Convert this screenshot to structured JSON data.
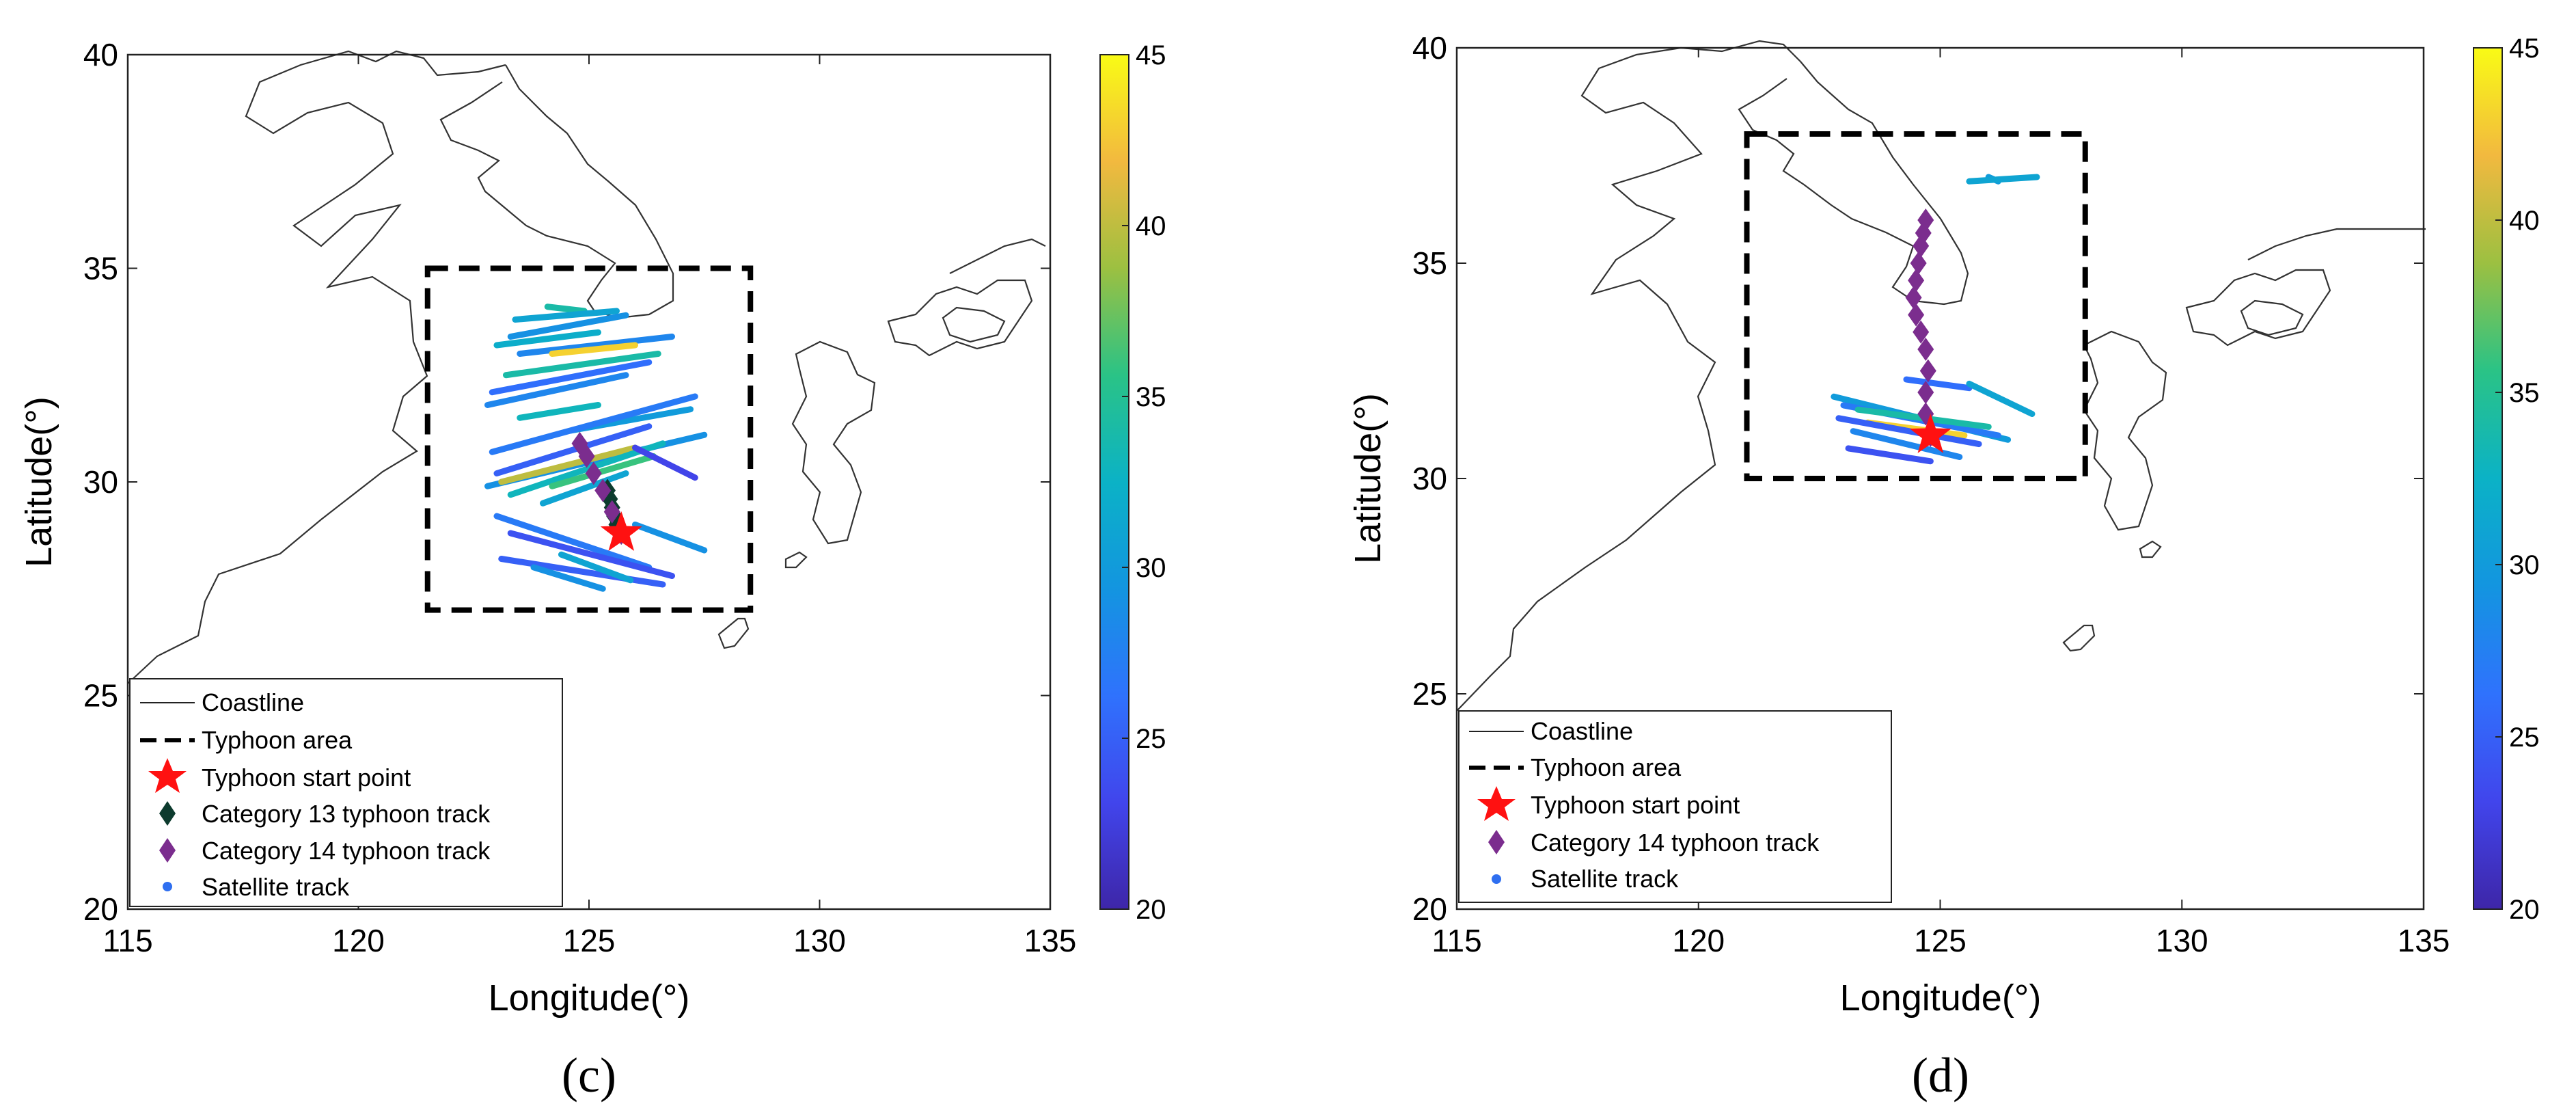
{
  "chart_data": [
    {
      "type": "scatter",
      "caption": "(c)",
      "xlabel": "Longitude(°)",
      "ylabel": "Latitude(°)",
      "xlim": [
        115,
        135
      ],
      "ylim": [
        20,
        40
      ],
      "xticks": [
        "115",
        "120",
        "125",
        "130",
        "135"
      ],
      "yticks": [
        "20",
        "25",
        "30",
        "35",
        "40"
      ],
      "colorbar": {
        "range": [
          20,
          45
        ],
        "ticks": [
          "20",
          "25",
          "30",
          "35",
          "40",
          "45"
        ]
      },
      "legend": {
        "position": "bottom-left",
        "entries": [
          "Coastline",
          "Typhoon area",
          "Typhoon start point",
          "Category 13 typhoon track",
          "Category 14 typhoon track",
          "Satellite track"
        ]
      },
      "typhoon_area": {
        "lon": [
          121.5,
          128.5
        ],
        "lat": [
          27,
          35
        ]
      },
      "start_point": {
        "lon": 125.7,
        "lat": 28.8
      },
      "typhoon_tracks": [
        {
          "name": "Category 13 typhoon track",
          "color": "#0d3b2e",
          "points": [
            [
              125.7,
              28.8
            ],
            [
              125.6,
              29.0
            ],
            [
              125.55,
              29.2
            ],
            [
              125.5,
              29.4
            ],
            [
              125.45,
              29.6
            ],
            [
              125.4,
              29.8
            ]
          ]
        },
        {
          "name": "Category 14 typhoon track",
          "color": "#7b2d8e",
          "points": [
            [
              125.7,
              28.8
            ],
            [
              125.5,
              29.3
            ],
            [
              125.3,
              29.8
            ],
            [
              125.1,
              30.2
            ],
            [
              124.95,
              30.6
            ],
            [
              124.8,
              30.9
            ]
          ]
        }
      ],
      "satellite_tracks": [
        {
          "from": [
            124.1,
            34.1
          ],
          "to": [
            124.9,
            34.0
          ],
          "value": 34
        },
        {
          "from": [
            123.4,
            33.8
          ],
          "to": [
            125.6,
            34.0
          ],
          "value": 31
        },
        {
          "from": [
            123.3,
            33.4
          ],
          "to": [
            125.8,
            33.9
          ],
          "value": 29
        },
        {
          "from": [
            123.0,
            33.2
          ],
          "to": [
            125.2,
            33.5
          ],
          "value": 32
        },
        {
          "from": [
            123.5,
            33.0
          ],
          "to": [
            126.8,
            33.4
          ],
          "value": 28
        },
        {
          "from": [
            124.2,
            33.0
          ],
          "to": [
            126.0,
            33.2
          ],
          "value": 43
        },
        {
          "from": [
            123.2,
            32.5
          ],
          "to": [
            126.5,
            33.0
          ],
          "value": 34
        },
        {
          "from": [
            122.9,
            32.1
          ],
          "to": [
            126.3,
            32.8
          ],
          "value": 26
        },
        {
          "from": [
            122.8,
            31.8
          ],
          "to": [
            125.8,
            32.5
          ],
          "value": 28
        },
        {
          "from": [
            123.5,
            31.5
          ],
          "to": [
            125.2,
            31.8
          ],
          "value": 33
        },
        {
          "from": [
            124.6,
            31.2
          ],
          "to": [
            127.2,
            31.7
          ],
          "value": 30
        },
        {
          "from": [
            122.9,
            30.7
          ],
          "to": [
            127.3,
            32.0
          ],
          "value": 27
        },
        {
          "from": [
            123.0,
            30.2
          ],
          "to": [
            126.3,
            31.3
          ],
          "value": 25
        },
        {
          "from": [
            122.8,
            29.9
          ],
          "to": [
            127.5,
            31.1
          ],
          "value": 29
        },
        {
          "from": [
            123.1,
            30.0
          ],
          "to": [
            126.0,
            30.8
          ],
          "value": 40
        },
        {
          "from": [
            123.3,
            29.7
          ],
          "to": [
            126.6,
            30.9
          ],
          "value": 33
        },
        {
          "from": [
            124.2,
            29.9
          ],
          "to": [
            126.4,
            30.6
          ],
          "value": 36
        },
        {
          "from": [
            126.0,
            30.8
          ],
          "to": [
            127.3,
            30.1
          ],
          "value": 23
        },
        {
          "from": [
            124.0,
            29.5
          ],
          "to": [
            125.8,
            30.2
          ],
          "value": 31
        },
        {
          "from": [
            123.0,
            29.2
          ],
          "to": [
            126.3,
            28.0
          ],
          "value": 27
        },
        {
          "from": [
            126.0,
            29.0
          ],
          "to": [
            127.5,
            28.4
          ],
          "value": 29
        },
        {
          "from": [
            123.3,
            28.8
          ],
          "to": [
            126.8,
            27.8
          ],
          "value": 24
        },
        {
          "from": [
            123.1,
            28.2
          ],
          "to": [
            126.6,
            27.6
          ],
          "value": 25
        },
        {
          "from": [
            124.4,
            28.3
          ],
          "to": [
            125.9,
            27.7
          ],
          "value": 31
        },
        {
          "from": [
            123.8,
            28.0
          ],
          "to": [
            125.3,
            27.5
          ],
          "value": 29
        }
      ]
    },
    {
      "type": "scatter",
      "caption": "(d)",
      "xlabel": "Longitude(°)",
      "ylabel": "Latitude(°)",
      "xlim": [
        115,
        135
      ],
      "ylim": [
        20,
        40
      ],
      "xticks": [
        "115",
        "120",
        "125",
        "130",
        "135"
      ],
      "yticks": [
        "20",
        "25",
        "30",
        "35",
        "40"
      ],
      "colorbar": {
        "range": [
          20,
          45
        ],
        "ticks": [
          "20",
          "25",
          "30",
          "35",
          "40",
          "45"
        ]
      },
      "legend": {
        "position": "bottom-left",
        "entries": [
          "Coastline",
          "Typhoon area",
          "Typhoon start point",
          "Category 14 typhoon track",
          "Satellite track"
        ]
      },
      "typhoon_area": {
        "lon": [
          121,
          128
        ],
        "lat": [
          30,
          38
        ]
      },
      "start_point": {
        "lon": 124.8,
        "lat": 31.0
      },
      "typhoon_tracks": [
        {
          "name": "Category 14 typhoon track",
          "color": "#7b2d8e",
          "points": [
            [
              124.8,
              31.0
            ],
            [
              124.7,
              31.5
            ],
            [
              124.7,
              32.0
            ],
            [
              124.75,
              32.5
            ],
            [
              124.7,
              33.0
            ],
            [
              124.6,
              33.4
            ],
            [
              124.5,
              33.8
            ],
            [
              124.45,
              34.2
            ],
            [
              124.5,
              34.6
            ],
            [
              124.55,
              35.0
            ],
            [
              124.6,
              35.4
            ],
            [
              124.65,
              35.7
            ],
            [
              124.7,
              36.0
            ]
          ]
        }
      ],
      "satellite_tracks": [
        {
          "from": [
            126.0,
            37.0
          ],
          "to": [
            126.2,
            36.9
          ],
          "value": 30
        },
        {
          "from": [
            125.6,
            36.9
          ],
          "to": [
            127.0,
            37.0
          ],
          "value": 31
        },
        {
          "from": [
            124.3,
            32.3
          ],
          "to": [
            125.6,
            32.1
          ],
          "value": 26
        },
        {
          "from": [
            125.6,
            32.2
          ],
          "to": [
            126.9,
            31.5
          ],
          "value": 31
        },
        {
          "from": [
            122.8,
            31.9
          ],
          "to": [
            126.4,
            30.9
          ],
          "value": 30
        },
        {
          "from": [
            123.0,
            31.7
          ],
          "to": [
            126.2,
            31.0
          ],
          "value": 27
        },
        {
          "from": [
            123.3,
            31.6
          ],
          "to": [
            126.0,
            31.2
          ],
          "value": 34
        },
        {
          "from": [
            123.5,
            31.3
          ],
          "to": [
            125.5,
            31.0
          ],
          "value": 43
        },
        {
          "from": [
            122.9,
            31.4
          ],
          "to": [
            125.8,
            30.8
          ],
          "value": 25
        },
        {
          "from": [
            123.2,
            31.1
          ],
          "to": [
            125.4,
            30.5
          ],
          "value": 28
        },
        {
          "from": [
            123.1,
            30.7
          ],
          "to": [
            124.8,
            30.4
          ],
          "value": 24
        }
      ]
    }
  ]
}
